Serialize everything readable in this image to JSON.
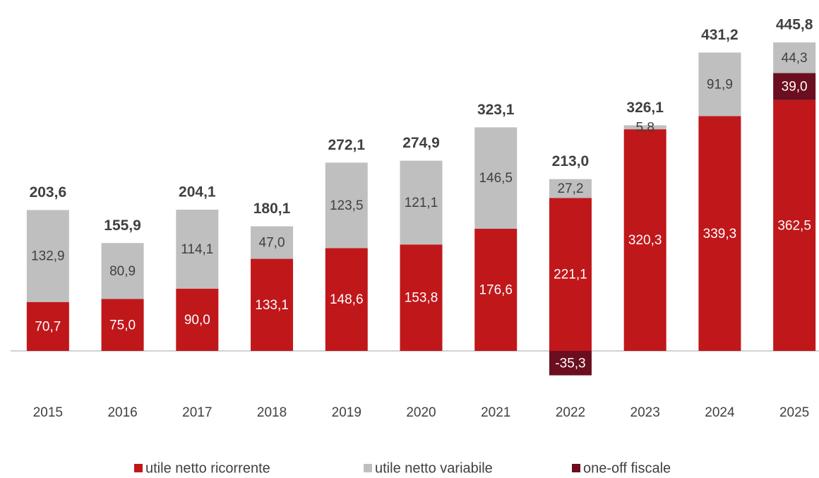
{
  "chart_data": {
    "type": "stacked-bar",
    "categories": [
      "2015",
      "2016",
      "2017",
      "2018",
      "2019",
      "2020",
      "2021",
      "2022",
      "2023",
      "2024",
      "2025"
    ],
    "series": [
      {
        "name": "utile netto ricorrente",
        "color": "#c0171b",
        "label_color": "#ffffff",
        "values": [
          70.7,
          75.0,
          90.0,
          133.1,
          148.6,
          153.8,
          176.6,
          221.1,
          320.3,
          339.3,
          362.5
        ],
        "value_labels": [
          "70,7",
          "75,0",
          "90,0",
          "133,1",
          "148,6",
          "153,8",
          "176,6",
          "221,1",
          "320,3",
          "339,3",
          "362,5"
        ]
      },
      {
        "name": "one-off fiscale",
        "color": "#6b0e1f",
        "label_color": "#ffffff",
        "values": [
          null,
          null,
          null,
          null,
          null,
          null,
          null,
          -35.3,
          null,
          null,
          39.0
        ],
        "value_labels": [
          null,
          null,
          null,
          null,
          null,
          null,
          null,
          "-35,3",
          null,
          null,
          "39,0"
        ]
      },
      {
        "name": "utile netto variabile",
        "color": "#bfbfbf",
        "label_color": "#404040",
        "values": [
          132.9,
          80.9,
          114.1,
          47.0,
          123.5,
          121.1,
          146.5,
          27.2,
          5.8,
          91.9,
          44.3
        ],
        "value_labels": [
          "132,9",
          "80,9",
          "114,1",
          "47,0",
          "123,5",
          "121,1",
          "146,5",
          "27,2",
          "5,8",
          "91,9",
          "44,3"
        ]
      }
    ],
    "legend_order": [
      0,
      2,
      1
    ],
    "totals": {
      "values": [
        203.6,
        155.9,
        204.1,
        180.1,
        272.1,
        274.9,
        323.1,
        213.0,
        326.1,
        431.2,
        445.8
      ],
      "value_labels": [
        "203,6",
        "155,9",
        "204,1",
        "180,1",
        "272,1",
        "274,9",
        "323,1",
        "213,0",
        "326,1",
        "431,2",
        "445,8"
      ]
    },
    "ylim": [
      -60,
      460
    ],
    "legend": "bottom"
  }
}
